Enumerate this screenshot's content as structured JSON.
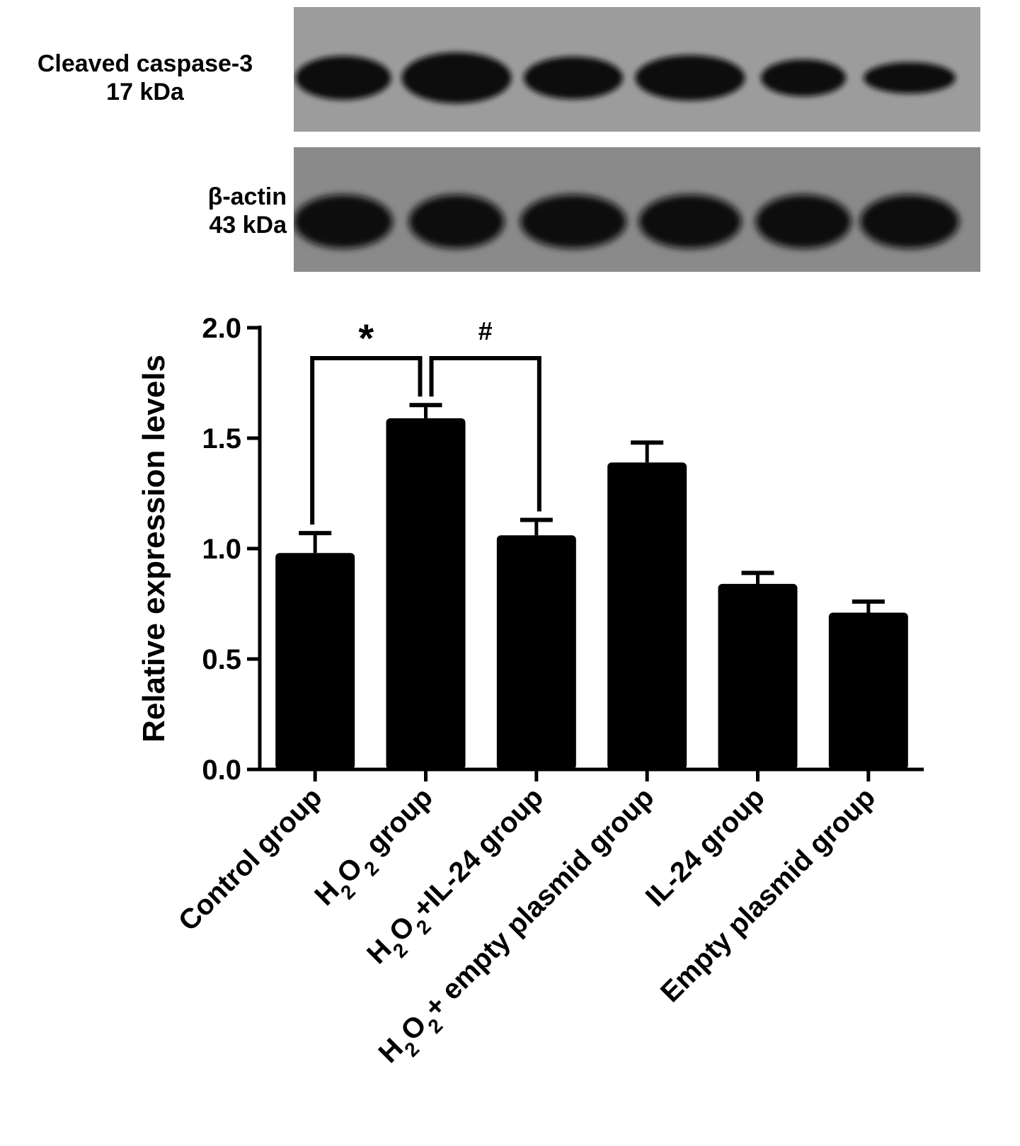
{
  "blots": [
    {
      "name": "Cleaved caspase-3",
      "size": "17 kDa"
    },
    {
      "name": "β-actin",
      "size": "43 kDa"
    }
  ],
  "chart_data": {
    "type": "bar",
    "categories": [
      {
        "parts": [
          {
            "t": "Control group"
          }
        ]
      },
      {
        "parts": [
          {
            "t": "H"
          },
          {
            "t": "2",
            "sub": true
          },
          {
            "t": "O"
          },
          {
            "t": "2",
            "sub": true
          },
          {
            "t": " group"
          }
        ]
      },
      {
        "parts": [
          {
            "t": "H"
          },
          {
            "t": "2",
            "sub": true
          },
          {
            "t": "O"
          },
          {
            "t": "2",
            "sub": true
          },
          {
            "t": "+IL-24 group"
          }
        ]
      },
      {
        "parts": [
          {
            "t": "H"
          },
          {
            "t": "2",
            "sub": true
          },
          {
            "t": "O"
          },
          {
            "t": "2",
            "sub": true
          },
          {
            "t": "+ empty plasmid group"
          }
        ]
      },
      {
        "parts": [
          {
            "t": "IL-24 group"
          }
        ]
      },
      {
        "parts": [
          {
            "t": "Empty plasmid group"
          }
        ]
      }
    ],
    "values": [
      0.98,
      1.59,
      1.06,
      1.39,
      0.84,
      0.71
    ],
    "errors": [
      0.09,
      0.06,
      0.07,
      0.09,
      0.05,
      0.05
    ],
    "ylabel": "Relative expression levels",
    "ylim": [
      0,
      2.0
    ],
    "yticks": [
      "0.0",
      "0.5",
      "1.0",
      "1.5",
      "2.0"
    ],
    "significance": [
      {
        "from": 0,
        "to": 1,
        "label": "*"
      },
      {
        "from": 1,
        "to": 2,
        "label": "#"
      }
    ],
    "bar_color": "#000000",
    "grid": false
  }
}
